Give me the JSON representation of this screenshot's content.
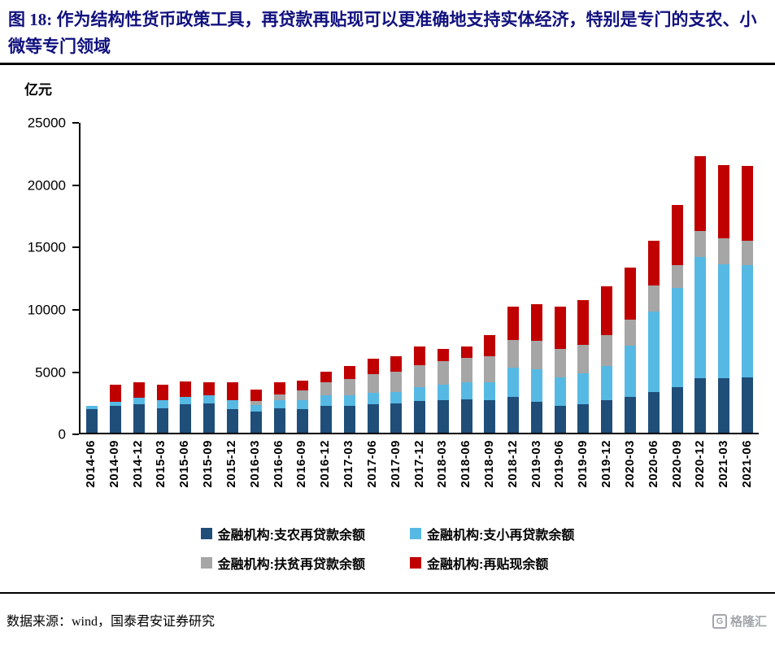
{
  "title": {
    "text": "图 18: 作为结构性货币政策工具，再贷款再贴现可以更准确地支持实体经济，特别是专门的支农、小微等专门领域"
  },
  "chart_data": {
    "type": "bar",
    "stacked": true,
    "title": "",
    "xlabel": "",
    "ylabel": "亿元",
    "ylim": [
      0,
      25000
    ],
    "yticks": [
      0,
      5000,
      10000,
      15000,
      20000,
      25000
    ],
    "grid": false,
    "legend_position": "bottom",
    "categories": [
      "2014-06",
      "2014-09",
      "2014-12",
      "2015-03",
      "2015-06",
      "2015-09",
      "2015-12",
      "2016-03",
      "2016-06",
      "2016-09",
      "2016-12",
      "2017-03",
      "2017-06",
      "2017-09",
      "2017-12",
      "2018-03",
      "2018-06",
      "2018-09",
      "2018-12",
      "2019-03",
      "2019-06",
      "2019-09",
      "2019-12",
      "2020-03",
      "2020-06",
      "2020-09",
      "2020-12",
      "2021-03",
      "2021-06"
    ],
    "series": [
      {
        "name": "金融机构:支农再贷款余额",
        "color": "#1F4E79",
        "values": [
          1900,
          2200,
          2300,
          2000,
          2300,
          2400,
          1900,
          1700,
          2000,
          1900,
          2200,
          2200,
          2300,
          2350,
          2550,
          2600,
          2700,
          2600,
          2900,
          2500,
          2200,
          2300,
          2600,
          2900,
          3300,
          3700,
          4400,
          4400,
          4500
        ]
      },
      {
        "name": "金融机构:支小再贷款余额",
        "color": "#56B9E4",
        "values": [
          300,
          300,
          500,
          600,
          600,
          600,
          750,
          550,
          600,
          700,
          800,
          850,
          900,
          950,
          1100,
          1300,
          1350,
          1500,
          2350,
          2600,
          2300,
          2500,
          2800,
          4100,
          6500,
          8000,
          9800,
          9200,
          9000
        ]
      },
      {
        "name": "金融机构:扶贫再贷款余额",
        "color": "#A6A6A6",
        "values": [
          0,
          0,
          0,
          0,
          0,
          0,
          0,
          300,
          500,
          800,
          1100,
          1300,
          1500,
          1600,
          1800,
          1900,
          2000,
          2100,
          2250,
          2300,
          2250,
          2300,
          2450,
          2100,
          2100,
          1800,
          2100,
          2100,
          2000
        ]
      },
      {
        "name": "金融机构:再贴现余额",
        "color": "#C00000",
        "values": [
          0,
          1400,
          1300,
          1300,
          1250,
          1100,
          1400,
          950,
          1000,
          800,
          850,
          1050,
          1300,
          1300,
          1500,
          950,
          900,
          1650,
          2650,
          3000,
          3400,
          3600,
          4000,
          4200,
          3600,
          4900,
          6000,
          5900,
          6000
        ]
      }
    ]
  },
  "source": {
    "text": "数据来源：wind，国泰君安证券研究"
  },
  "watermark": {
    "mark": "G",
    "text": "格隆汇"
  }
}
